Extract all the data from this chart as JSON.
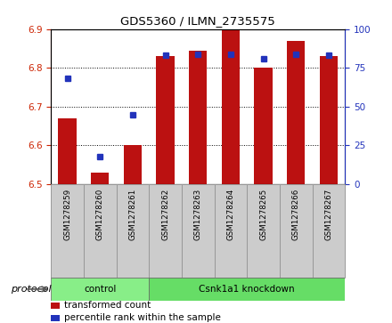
{
  "title": "GDS5360 / ILMN_2735575",
  "samples": [
    "GSM1278259",
    "GSM1278260",
    "GSM1278261",
    "GSM1278262",
    "GSM1278263",
    "GSM1278264",
    "GSM1278265",
    "GSM1278266",
    "GSM1278267"
  ],
  "red_values": [
    6.67,
    6.53,
    6.6,
    6.83,
    6.845,
    6.9,
    6.8,
    6.87,
    6.83
  ],
  "blue_values": [
    68,
    18,
    45,
    83,
    84,
    84,
    81,
    84,
    83
  ],
  "bar_bottom": 6.5,
  "ylim_left": [
    6.5,
    6.9
  ],
  "ylim_right": [
    0,
    100
  ],
  "yticks_left": [
    6.5,
    6.6,
    6.7,
    6.8,
    6.9
  ],
  "yticks_right": [
    0,
    25,
    50,
    75,
    100
  ],
  "bar_color": "#bb1111",
  "dot_color": "#2233bb",
  "bar_width": 0.55,
  "protocol_groups": [
    {
      "label": "control",
      "start": 0,
      "end": 3,
      "color": "#88ee88"
    },
    {
      "label": "Csnk1a1 knockdown",
      "start": 3,
      "end": 9,
      "color": "#66dd66"
    }
  ],
  "legend_items": [
    {
      "color": "#bb1111",
      "label": "transformed count"
    },
    {
      "color": "#2233bb",
      "label": "percentile rank within the sample"
    }
  ],
  "left_tick_color": "#cc2200",
  "right_tick_color": "#2233bb",
  "sample_box_color": "#cccccc",
  "sample_box_edge": "#999999"
}
